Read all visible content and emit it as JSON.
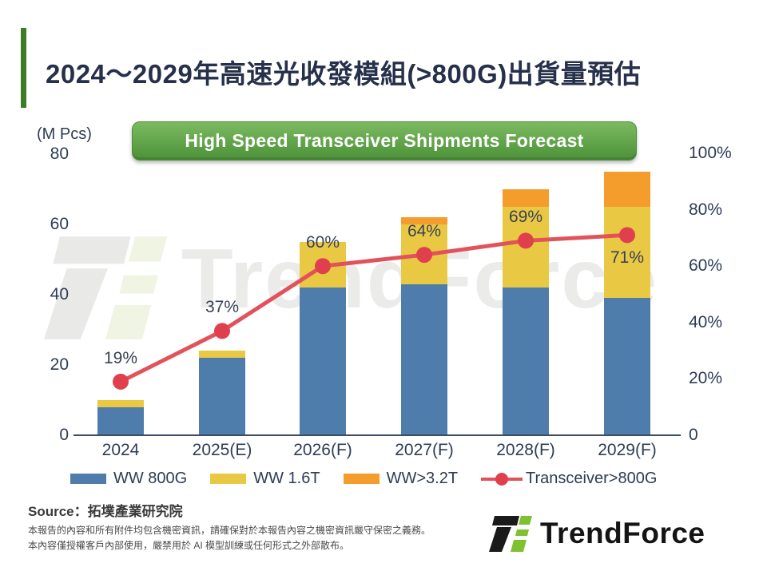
{
  "header": {
    "title": "2024～2029年高速光收發模組(>800G)出貨量預估"
  },
  "banner": {
    "label": "High Speed Transceiver Shipments Forecast"
  },
  "chart_data": {
    "type": "bar",
    "subtype": "stacked-bar-with-line",
    "title": "High Speed Transceiver Shipments Forecast",
    "unit_label": "(M Pcs)",
    "categories": [
      "2024",
      "2025(E)",
      "2026(F)",
      "2027(F)",
      "2028(F)",
      "2029(F)"
    ],
    "bar_series": [
      {
        "name": "WW 800G",
        "color": "#4e7cab",
        "values": [
          8,
          22,
          42,
          43,
          42,
          39
        ]
      },
      {
        "name": "WW 1.6T",
        "color": "#e9c943",
        "values": [
          2,
          2,
          13,
          17,
          23,
          26
        ]
      },
      {
        "name": "WW>3.2T",
        "color": "#f49d2d",
        "values": [
          0,
          0,
          0,
          2,
          5,
          10
        ]
      }
    ],
    "line_series": {
      "name": "Transceiver>800G",
      "color": "#e2525b",
      "dot_color": "#e0404d",
      "values_pct": [
        19,
        37,
        60,
        64,
        69,
        71
      ],
      "labels": [
        "19%",
        "37%",
        "60%",
        "64%",
        "69%",
        "71%"
      ],
      "label_below": [
        false,
        false,
        false,
        false,
        false,
        true
      ]
    },
    "left_axis": {
      "label": "(M Pcs)",
      "ticks": [
        80,
        60,
        40,
        20,
        0
      ],
      "min": 0,
      "max": 80
    },
    "right_axis": {
      "ticks": [
        "100%",
        "80%",
        "60%",
        "40%",
        "20%",
        "0"
      ],
      "min": 0,
      "max": 100
    },
    "grid": false,
    "legend_position": "bottom"
  },
  "legend": {
    "items": [
      {
        "label": "WW 800G",
        "color": "#4e7cab",
        "marker": "swatch"
      },
      {
        "label": "WW 1.6T",
        "color": "#e9c943",
        "marker": "swatch"
      },
      {
        "label": "WW>3.2T",
        "color": "#f49d2d",
        "marker": "swatch"
      },
      {
        "label": "Transceiver>800G",
        "color": "#e2525b",
        "marker": "line-dot"
      }
    ]
  },
  "watermark": {
    "text": "TrendForce"
  },
  "footer": {
    "source": "Source：拓墣產業研究院",
    "disclaimer_line1": "本報告的內容和所有附件均包含機密資訊，請確保對於本報告內容之機密資訊嚴守保密之義務。",
    "disclaimer_line2": "本內容僅授權客戶內部使用，嚴禁用於 AI 模型訓練或任何形式之外部散布。",
    "logo_text": "TrendForce"
  }
}
